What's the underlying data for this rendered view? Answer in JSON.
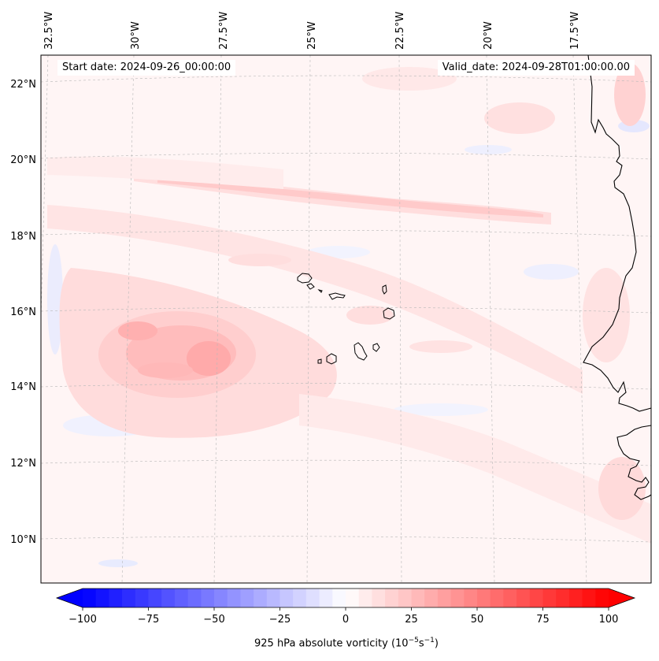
{
  "map": {
    "field": "925 hPa absolute vorticity",
    "start_date_label": "Start date: 2024-09-26_00:00:00",
    "valid_date_label": "Valid_date: 2024-09-28T01:00:00.00",
    "lon_labels": [
      "32.5°W",
      "30°W",
      "27.5°W",
      "25°W",
      "22.5°W",
      "20°W",
      "17.5°W"
    ],
    "lat_labels": [
      "22°N",
      "20°N",
      "18°N",
      "16°N",
      "14°N",
      "12°N",
      "10°N"
    ],
    "colors": {
      "positive": "#ff0000",
      "negative": "#0000ff",
      "neutral": "#ffffff"
    }
  },
  "colorbar": {
    "label_text": "925 hPa absolute vorticity (10",
    "label_exp1": "−5",
    "label_unit": "s",
    "label_exp2": "−1",
    "label_close": ")",
    "min": -100,
    "max": 100,
    "ticks": [
      "−100",
      "−75",
      "−50",
      "−25",
      "0",
      "25",
      "50",
      "75",
      "100"
    ]
  }
}
